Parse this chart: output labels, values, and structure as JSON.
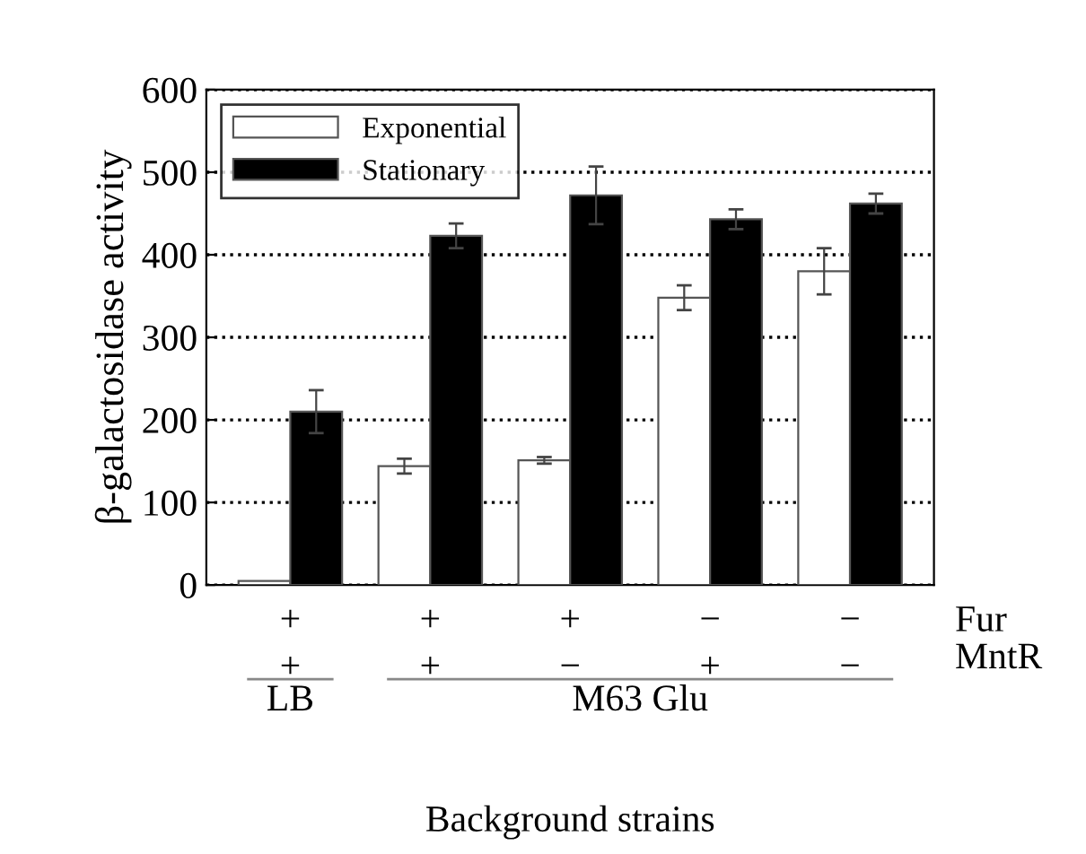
{
  "chart_data": {
    "type": "bar",
    "ylabel": "β-galactosidase activity",
    "xlabel": "Background strains",
    "categories": [
      "+\n+",
      "+\n+",
      "+\n−",
      "−\n+",
      "−\n−"
    ],
    "series": [
      {
        "name": "Exponential",
        "color": "#ffffff",
        "values": [
          5,
          144,
          151,
          348,
          380
        ],
        "errors": [
          null,
          9,
          4,
          15,
          28
        ]
      },
      {
        "name": "Stationary",
        "color": "#000000",
        "values": [
          210,
          423,
          472,
          443,
          462
        ],
        "errors": [
          26,
          15,
          35,
          12,
          12
        ]
      }
    ],
    "ylim": [
      0,
      600
    ],
    "yticks": [
      0,
      100,
      200,
      300,
      400,
      500,
      600
    ],
    "grid": "y",
    "legend": "top left",
    "annotations": [
      "Fur",
      "MntR",
      "LB",
      "M63 Glu"
    ]
  }
}
